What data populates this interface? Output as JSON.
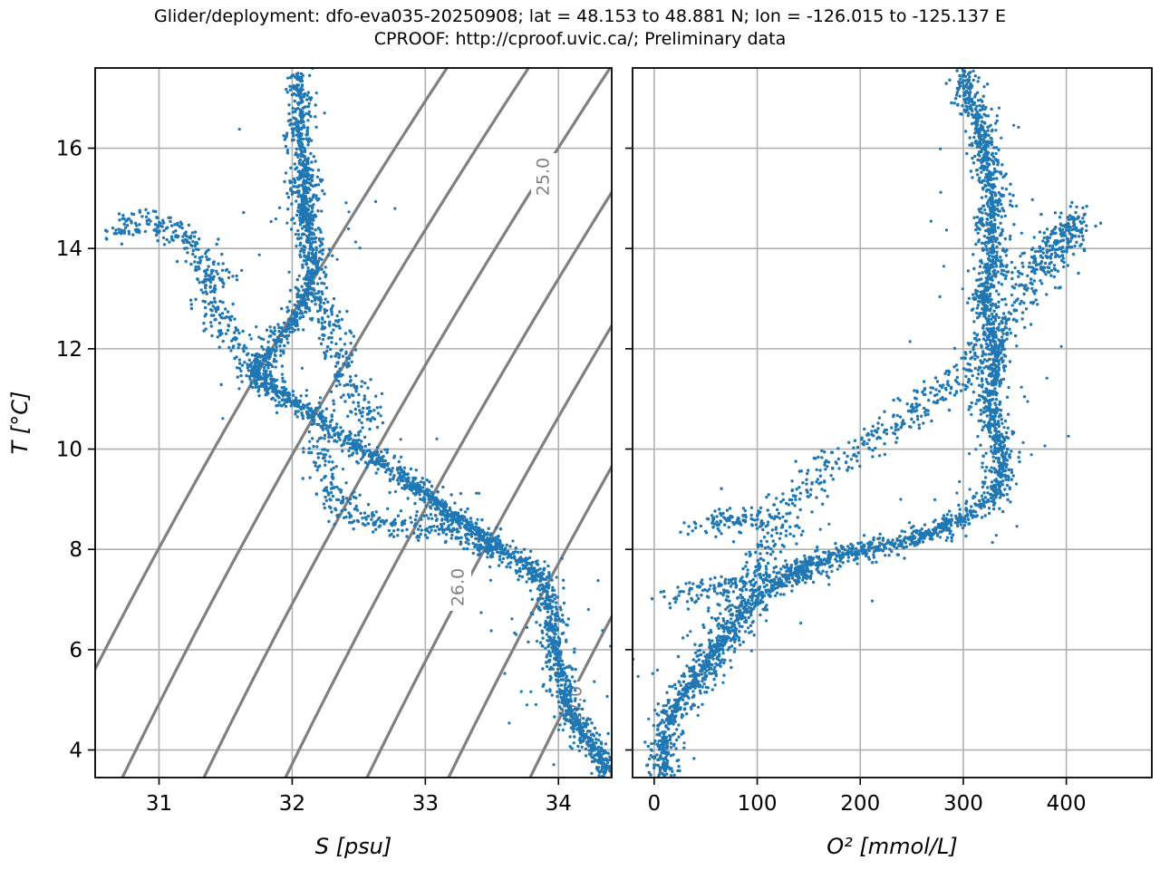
{
  "title": {
    "line1": "Glider/deployment: dfo-eva035-20250908; lat = 48.153 to 48.881 N; lon = -126.015 to -125.137 E",
    "line2": "CPROOF: http://cproof.uvic.ca/; Preliminary data"
  },
  "chart_data": [
    {
      "type": "scatter",
      "title": "",
      "xlabel": "S [psu]",
      "ylabel": "T [°C]",
      "xlim": [
        30.52,
        34.4
      ],
      "ylim": [
        3.45,
        17.6
      ],
      "xticks": [
        31,
        32,
        33,
        34
      ],
      "yticks": [
        4,
        6,
        8,
        10,
        12,
        14,
        16
      ],
      "grid": true,
      "color": "#1f77b4",
      "isopycnal_color": "#808080",
      "contour_labels": [
        "25.0",
        "26.0",
        "27.0"
      ],
      "profile_points": [
        [
          32.05,
          17.55
        ],
        [
          32.06,
          16.8
        ],
        [
          32.05,
          16.2
        ],
        [
          32.1,
          15.6
        ],
        [
          32.1,
          15.2
        ],
        [
          32.08,
          14.8
        ],
        [
          32.12,
          14.5
        ],
        [
          32.15,
          14.0
        ],
        [
          32.15,
          13.5
        ],
        [
          32.1,
          13.0
        ],
        [
          32.0,
          12.5
        ],
        [
          31.85,
          12.0
        ],
        [
          31.7,
          11.5
        ],
        [
          31.9,
          11.1
        ],
        [
          32.1,
          10.8
        ],
        [
          32.3,
          10.4
        ],
        [
          32.5,
          10.0
        ],
        [
          32.7,
          9.7
        ],
        [
          32.9,
          9.3
        ],
        [
          33.05,
          9.0
        ],
        [
          33.2,
          8.7
        ],
        [
          33.35,
          8.4
        ],
        [
          33.5,
          8.1
        ],
        [
          33.7,
          7.8
        ],
        [
          33.85,
          7.5
        ],
        [
          33.92,
          7.0
        ],
        [
          33.95,
          6.5
        ],
        [
          33.98,
          6.0
        ],
        [
          34.02,
          5.5
        ],
        [
          34.05,
          5.0
        ],
        [
          34.12,
          4.6
        ],
        [
          34.22,
          4.2
        ],
        [
          34.32,
          3.8
        ],
        [
          34.38,
          3.5
        ]
      ],
      "branches": [
        [
          [
            32.2,
            10.2
          ],
          [
            32.25,
            9.5
          ],
          [
            32.3,
            9.0
          ],
          [
            32.45,
            8.7
          ],
          [
            32.7,
            8.5
          ],
          [
            32.95,
            8.45
          ],
          [
            33.2,
            8.4
          ],
          [
            33.4,
            8.2
          ],
          [
            33.6,
            7.9
          ]
        ],
        [
          [
            31.35,
            13.5
          ],
          [
            31.4,
            13.0
          ],
          [
            31.45,
            12.5
          ],
          [
            31.6,
            12.0
          ],
          [
            31.75,
            11.5
          ],
          [
            31.9,
            11.1
          ]
        ],
        [
          [
            30.65,
            14.3
          ],
          [
            30.85,
            14.55
          ],
          [
            31.05,
            14.45
          ],
          [
            31.2,
            14.2
          ],
          [
            31.35,
            13.8
          ],
          [
            31.45,
            13.4
          ]
        ],
        [
          [
            32.15,
            13.2
          ],
          [
            32.3,
            12.5
          ],
          [
            32.35,
            12.0
          ],
          [
            32.4,
            11.5
          ],
          [
            32.5,
            11.0
          ],
          [
            32.6,
            10.5
          ]
        ]
      ]
    },
    {
      "type": "scatter",
      "title": "",
      "xlabel": "O² [mmol/L]",
      "ylabel": "",
      "xlim": [
        -21,
        483
      ],
      "ylim": [
        3.45,
        17.6
      ],
      "xticks": [
        0,
        100,
        200,
        300,
        400
      ],
      "yticks": [
        4,
        6,
        8,
        10,
        12,
        14,
        16
      ],
      "grid": true,
      "color": "#1f77b4",
      "profile_points": [
        [
          10,
          3.5
        ],
        [
          8,
          4.0
        ],
        [
          12,
          4.5
        ],
        [
          25,
          5.0
        ],
        [
          45,
          5.5
        ],
        [
          60,
          6.0
        ],
        [
          78,
          6.5
        ],
        [
          100,
          7.0
        ],
        [
          125,
          7.4
        ],
        [
          150,
          7.7
        ],
        [
          180,
          7.9
        ],
        [
          210,
          8.0
        ],
        [
          240,
          8.15
        ],
        [
          270,
          8.35
        ],
        [
          300,
          8.6
        ],
        [
          325,
          9.0
        ],
        [
          340,
          9.5
        ],
        [
          335,
          10.0
        ],
        [
          330,
          10.5
        ],
        [
          325,
          11.0
        ],
        [
          330,
          11.5
        ],
        [
          330,
          12.0
        ],
        [
          325,
          12.5
        ],
        [
          320,
          13.0
        ],
        [
          325,
          13.5
        ],
        [
          330,
          14.0
        ],
        [
          325,
          14.5
        ],
        [
          330,
          15.0
        ],
        [
          325,
          15.5
        ],
        [
          320,
          16.0
        ],
        [
          315,
          16.5
        ],
        [
          305,
          17.0
        ],
        [
          300,
          17.5
        ]
      ],
      "branches": [
        [
          [
            30,
            4.8
          ],
          [
            45,
            5.5
          ],
          [
            60,
            6.0
          ],
          [
            75,
            6.6
          ],
          [
            90,
            7.2
          ],
          [
            105,
            7.8
          ],
          [
            120,
            8.5
          ],
          [
            140,
            9.1
          ],
          [
            165,
            9.6
          ],
          [
            195,
            10.0
          ],
          [
            225,
            10.4
          ],
          [
            255,
            10.8
          ],
          [
            280,
            11.2
          ],
          [
            300,
            11.6
          ],
          [
            320,
            12.0
          ],
          [
            340,
            12.5
          ],
          [
            360,
            13.1
          ],
          [
            380,
            13.6
          ],
          [
            395,
            14.0
          ],
          [
            405,
            14.4
          ],
          [
            410,
            14.7
          ]
        ],
        [
          [
            25,
            7.0
          ],
          [
            50,
            7.1
          ],
          [
            80,
            7.3
          ],
          [
            110,
            7.45
          ],
          [
            140,
            7.55
          ],
          [
            165,
            7.6
          ]
        ],
        [
          [
            50,
            8.4
          ],
          [
            70,
            8.6
          ],
          [
            95,
            8.65
          ],
          [
            120,
            8.5
          ]
        ],
        [
          [
            360,
            13.5
          ],
          [
            380,
            13.8
          ],
          [
            395,
            14.3
          ],
          [
            405,
            14.7
          ]
        ]
      ]
    }
  ]
}
